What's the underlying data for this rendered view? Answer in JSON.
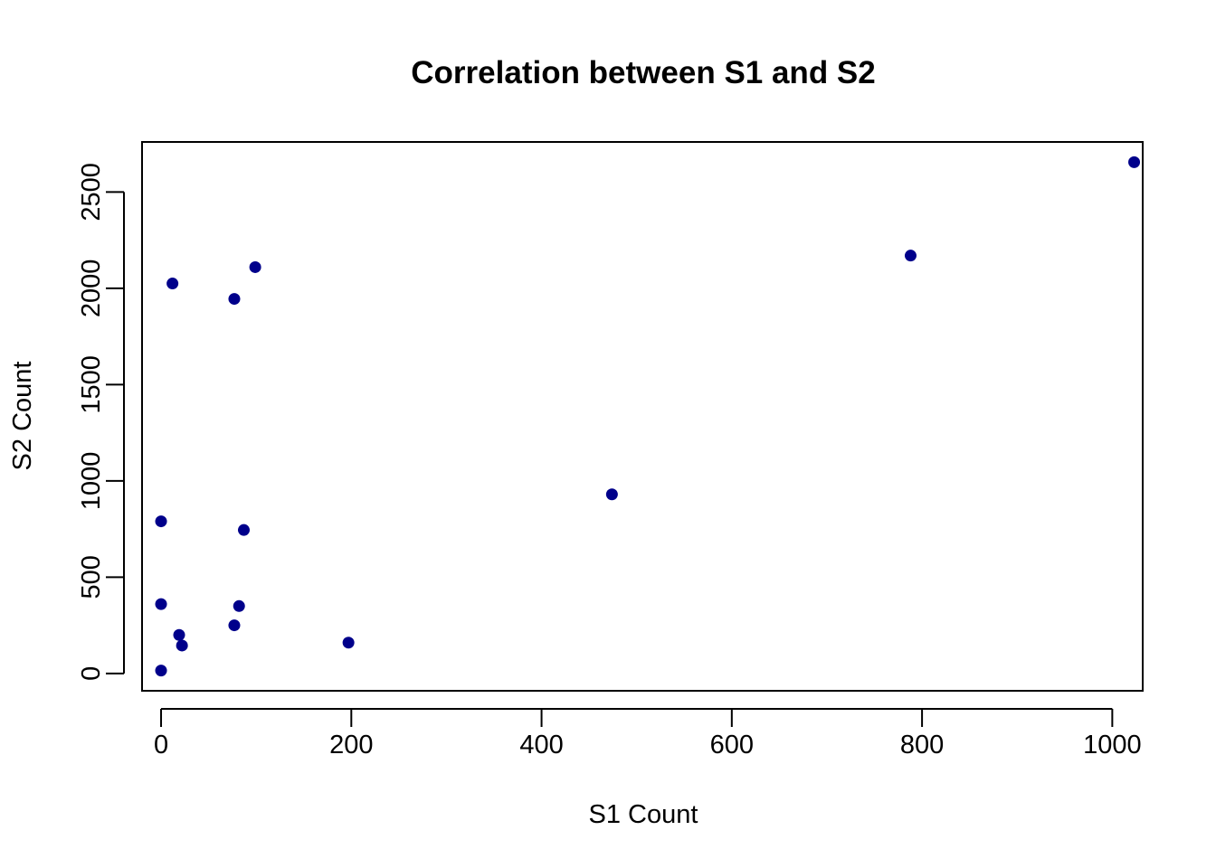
{
  "chart_data": {
    "type": "scatter",
    "title": "Correlation between S1 and S2",
    "xlabel": "S1 Count",
    "ylabel": "S2 Count",
    "xlim": [
      -20,
      1032
    ],
    "ylim": [
      -90,
      2760
    ],
    "x_ticks": [
      0,
      200,
      400,
      600,
      800,
      1000
    ],
    "y_ticks": [
      0,
      500,
      1000,
      1500,
      2000,
      2500
    ],
    "point_color": "#00008B",
    "grid": false,
    "points": [
      {
        "x": 0,
        "y": 15
      },
      {
        "x": 0,
        "y": 360
      },
      {
        "x": 0,
        "y": 790
      },
      {
        "x": 12,
        "y": 2025
      },
      {
        "x": 19,
        "y": 200
      },
      {
        "x": 22,
        "y": 145
      },
      {
        "x": 77,
        "y": 1945
      },
      {
        "x": 77,
        "y": 250
      },
      {
        "x": 82,
        "y": 350
      },
      {
        "x": 87,
        "y": 745
      },
      {
        "x": 99,
        "y": 2110
      },
      {
        "x": 197,
        "y": 160
      },
      {
        "x": 474,
        "y": 930
      },
      {
        "x": 788,
        "y": 2170
      },
      {
        "x": 1023,
        "y": 2655
      }
    ]
  }
}
